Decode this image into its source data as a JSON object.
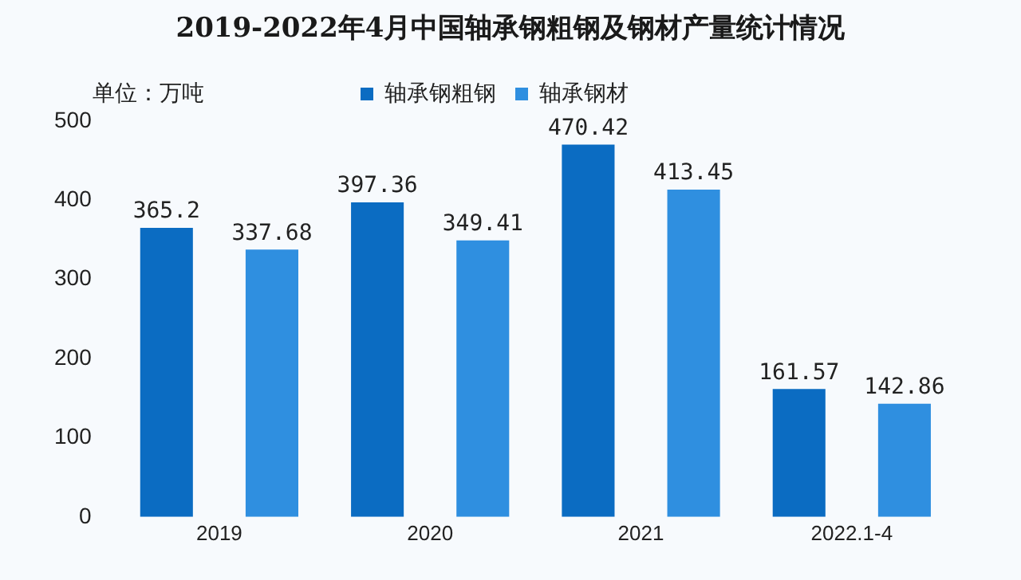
{
  "chart_data": {
    "type": "bar",
    "title": "2019-2022年4月中国轴承钢粗钢及钢材产量统计情况",
    "ylabel": "单位：万吨",
    "categories": [
      "2019",
      "2020",
      "2021",
      "2022.1-4"
    ],
    "series": [
      {
        "name": "轴承钢粗钢",
        "color": "#0b6cc2",
        "values": [
          365.2,
          397.36,
          470.42,
          161.57
        ]
      },
      {
        "name": "轴承钢材",
        "color": "#2f8fe0",
        "values": [
          337.68,
          349.41,
          413.45,
          142.86
        ]
      }
    ],
    "ylim": [
      0,
      500
    ],
    "yticks": [
      0,
      100,
      200,
      300,
      400,
      500
    ],
    "grid": false,
    "legend": "top",
    "data_labels": true
  }
}
